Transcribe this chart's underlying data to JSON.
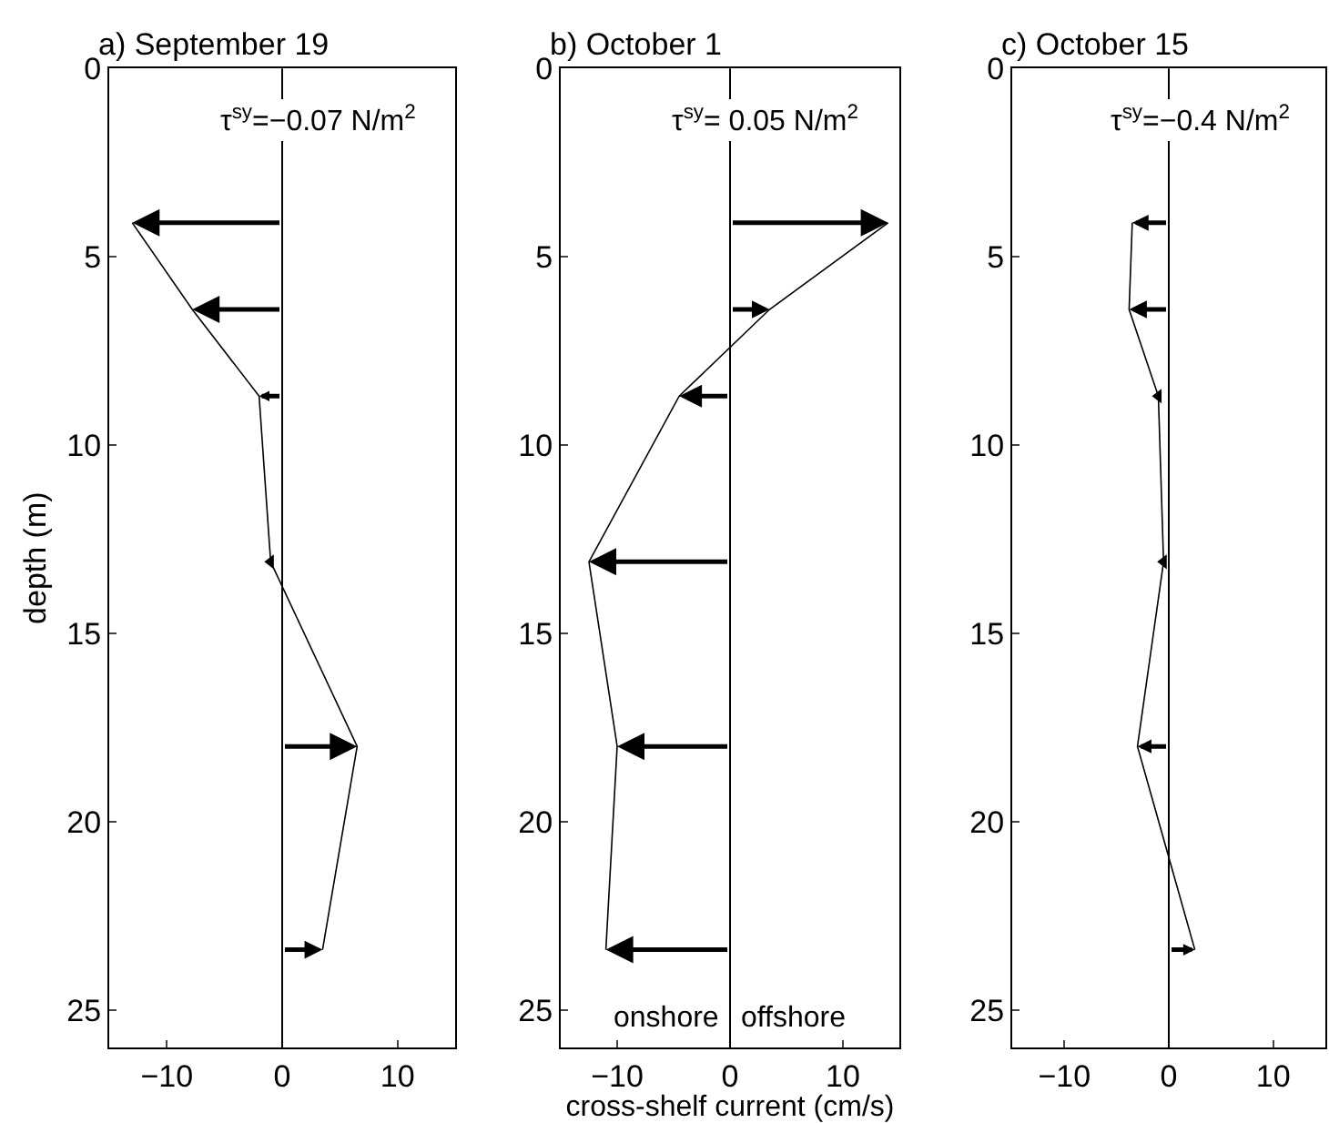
{
  "chart_data": [
    {
      "type": "line",
      "title": "a) September 19",
      "ylabel": "depth (m)",
      "annotations": [
        "τ$^{sy}$=−0.07 N/m$^{2}$"
      ],
      "series": [
        {
          "color": "#000000",
          "x": [
            -13,
            -7.8,
            -2,
            -1,
            6.5,
            3.5
          ],
          "values": [
            4.1,
            6.4,
            8.7,
            13.1,
            18.0,
            23.4
          ]
        }
      ],
      "xlim": [
        -15,
        15
      ],
      "xticks": [
        -10,
        0,
        10
      ],
      "ylim": [
        26,
        0
      ],
      "yticks": [
        0,
        5,
        10,
        15,
        20,
        25
      ],
      "ref_lines": [
        {
          "axis": "x",
          "value": 0,
          "color": "#000000"
        }
      ]
    },
    {
      "type": "line",
      "title": "b) October 1",
      "xlabel": "cross-shelf current (cm/s)",
      "annotations": [
        "τ$^{sy}$= 0.05 N/m$^{2}$",
        "onshore",
        "offshore"
      ],
      "series": [
        {
          "color": "#000000",
          "x": [
            14,
            3.5,
            -4.5,
            -12.5,
            -10,
            -11
          ],
          "values": [
            4.1,
            6.4,
            8.7,
            13.1,
            18.0,
            23.4
          ]
        }
      ],
      "xlim": [
        -15,
        15
      ],
      "xticks": [
        -10,
        0,
        10
      ],
      "ylim": [
        26,
        0
      ],
      "yticks": [
        0,
        5,
        10,
        15,
        20,
        25
      ],
      "ref_lines": [
        {
          "axis": "x",
          "value": 0,
          "color": "#000000"
        }
      ]
    },
    {
      "type": "line",
      "title": "c) October 15",
      "annotations": [
        "τ$^{sy}$=−0.4 N/m$^{2}$"
      ],
      "series": [
        {
          "color": "#000000",
          "x": [
            -3.5,
            -3.8,
            -1,
            -0.5,
            -3,
            2.5
          ],
          "values": [
            4.1,
            6.4,
            8.7,
            13.1,
            18.0,
            23.4
          ]
        }
      ],
      "xlim": [
        -15,
        15
      ],
      "xticks": [
        -10,
        0,
        10
      ],
      "ylim": [
        26,
        0
      ],
      "yticks": [
        0,
        5,
        10,
        15,
        20,
        25
      ],
      "ref_lines": [
        {
          "axis": "x",
          "value": 0,
          "color": "#000000"
        }
      ]
    }
  ]
}
